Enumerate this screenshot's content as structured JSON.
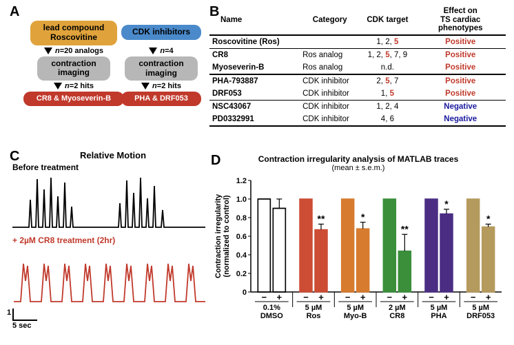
{
  "labels": {
    "A": "A",
    "B": "B",
    "C": "C",
    "D": "D"
  },
  "panelA": {
    "left": {
      "box1": "lead compound\nRoscovitine",
      "a1": "n=20 analogs",
      "box2": "contraction\nimaging",
      "a2": "n=2 hits",
      "box3": "CR8 & Myoseverin-B"
    },
    "right": {
      "box1": "CDK inhibitors",
      "a1": "n=4",
      "box2": "contraction\nimaging",
      "a2": "n=2 hits",
      "box3": "PHA & DRF053"
    }
  },
  "panelB": {
    "headers": [
      "Name",
      "Category",
      "CDK target",
      "Effect on\nTS cardiac phenotypes"
    ],
    "rows": [
      {
        "name": "Roscovitine (Ros)",
        "cat": "",
        "tgt": [
          "1, 2, ",
          "5"
        ],
        "eff": "Positive",
        "effClass": "red",
        "sep": "d"
      },
      {
        "name": "CR8",
        "cat": "Ros analog",
        "tgt": [
          "1, 2, ",
          "5",
          ", 7, 9"
        ],
        "eff": "Positive",
        "effClass": "red",
        "sep": "s"
      },
      {
        "name": "Myoseverin-B",
        "cat": "Ros analog",
        "tgt": [
          "n.d."
        ],
        "eff": "Positive",
        "effClass": "red",
        "sep": ""
      },
      {
        "name": "PHA-793887",
        "cat": "CDK inhibitor",
        "tgt": [
          "2, ",
          "5",
          ", 7"
        ],
        "eff": "Positive",
        "effClass": "red",
        "sep": "d"
      },
      {
        "name": "DRF053",
        "cat": "CDK inhibitor",
        "tgt": [
          "1, ",
          "5"
        ],
        "eff": "Positive",
        "effClass": "red",
        "sep": ""
      },
      {
        "name": "NSC43067",
        "cat": "CDK inhibitor",
        "tgt": [
          "1, 2, 4"
        ],
        "eff": "Negative",
        "effClass": "blue",
        "sep": "s"
      },
      {
        "name": "PD0332991",
        "cat": "CDK inhibitor",
        "tgt": [
          "4, 6"
        ],
        "eff": "Negative",
        "effClass": "blue",
        "sep": ""
      }
    ]
  },
  "panelC": {
    "title": "Relative Motion",
    "before": "Before treatment",
    "after": "+ 2µM CR8 treatment (2hr)",
    "scaleY": "1",
    "scaleX": "5 sec",
    "colors": {
      "before": "#000000",
      "after": "#c0392b"
    }
  },
  "panelD": {
    "title1": "Contraction irregularity analysis of MATLAB traces",
    "title2": "(mean ± s.e.m.)",
    "ylabel": "Contraction irregularity\n(normalized to control)",
    "ylim": [
      0,
      1.2
    ],
    "yticks": [
      0,
      0.2,
      0.4,
      0.6,
      0.8,
      1.0,
      1.2
    ],
    "groups": [
      {
        "label": "0.1%\nDMSO",
        "color": "#ffffff",
        "stroke": "#000",
        "v1": 1.0,
        "v2": 0.9,
        "e1": 0,
        "e2": 0.1,
        "sig": ""
      },
      {
        "label": "5 µM\nRos",
        "color": "#cc4d34",
        "stroke": "#cc4d34",
        "v1": 1.0,
        "v2": 0.67,
        "e1": 0,
        "e2": 0.06,
        "sig": "**"
      },
      {
        "label": "5 µM\nMyo-B",
        "color": "#d77b2f",
        "stroke": "#d77b2f",
        "v1": 1.0,
        "v2": 0.68,
        "e1": 0,
        "e2": 0.07,
        "sig": "*"
      },
      {
        "label": "2 µM\nCR8",
        "color": "#3b8f3b",
        "stroke": "#3b8f3b",
        "v1": 1.0,
        "v2": 0.44,
        "e1": 0,
        "e2": 0.18,
        "sig": "**"
      },
      {
        "label": "5 µM\nPHA",
        "color": "#4b2e83",
        "stroke": "#4b2e83",
        "v1": 1.0,
        "v2": 0.84,
        "e1": 0,
        "e2": 0.05,
        "sig": "*"
      },
      {
        "label": "5 µM\nDRF053",
        "color": "#b59a5e",
        "stroke": "#b59a5e",
        "v1": 1.0,
        "v2": 0.7,
        "e1": 0,
        "e2": 0.03,
        "sig": "*"
      }
    ],
    "minus": "−",
    "plus": "+"
  }
}
